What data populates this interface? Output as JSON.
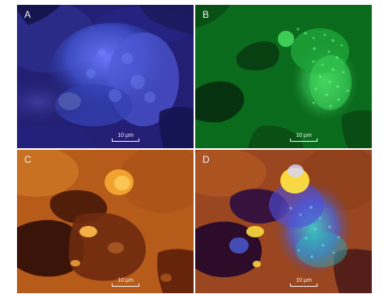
{
  "panels": [
    {
      "letter": "A",
      "scale_label": "10 µm"
    },
    {
      "letter": "B",
      "scale_label": "10 µm"
    },
    {
      "letter": "C",
      "scale_label": "10 µm"
    },
    {
      "letter": "D",
      "scale_label": "10 µm"
    }
  ],
  "colors": {
    "blue_background": "#222176",
    "blue_signal": "#5566dd",
    "green_background": "#0d6d1b",
    "green_signal": "#48d866",
    "orange_background": "#b05a1a",
    "orange_signal": "#f1b03a",
    "merge_background": "#8d3f1e",
    "merge_signal_blue": "#4a63d9",
    "merge_signal_cyan": "#35d1d0",
    "merge_signal_yellow": "#ffe23d"
  }
}
